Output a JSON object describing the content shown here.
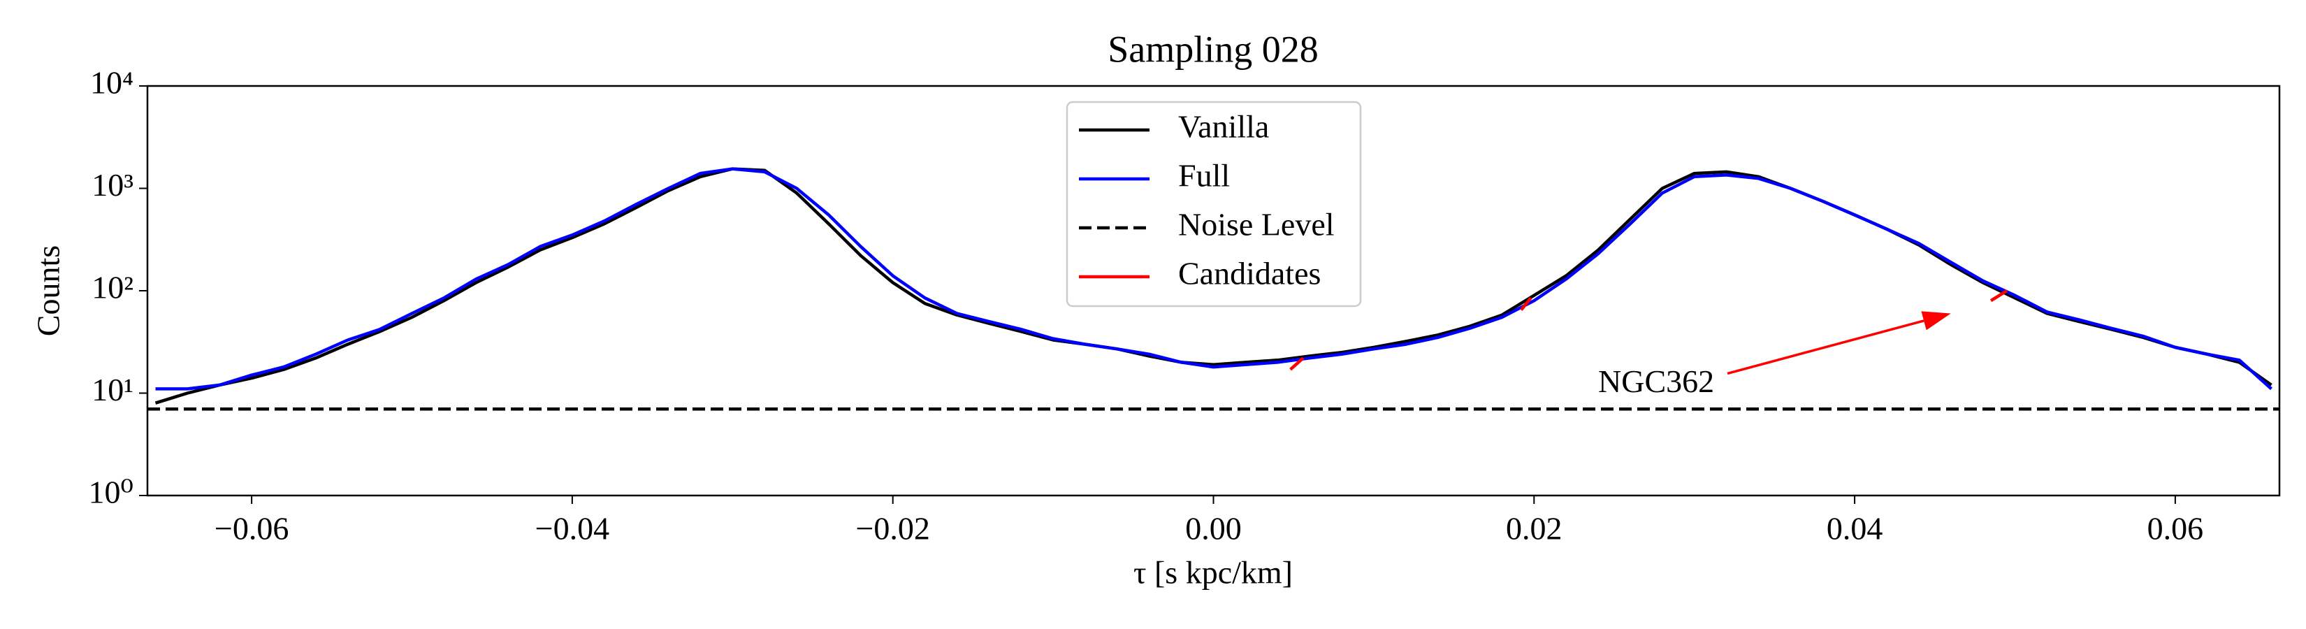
{
  "chart_data": {
    "type": "line",
    "title": "Sampling 028",
    "xlabel": "τ [s kpc/km]",
    "ylabel": "Counts",
    "log_y": true,
    "xlim": [
      -0.0665,
      0.0665
    ],
    "ylim": [
      1,
      10000
    ],
    "xticks": [
      {
        "value": -0.06,
        "label": "−0.06"
      },
      {
        "value": -0.04,
        "label": "−0.04"
      },
      {
        "value": -0.02,
        "label": "−0.02"
      },
      {
        "value": 0,
        "label": "0.00"
      },
      {
        "value": 0.02,
        "label": "0.02"
      },
      {
        "value": 0.04,
        "label": "0.04"
      },
      {
        "value": 0.06,
        "label": "0.06"
      }
    ],
    "yticks": [
      {
        "value": 1,
        "label": "10⁰"
      },
      {
        "value": 10,
        "label": "10¹"
      },
      {
        "value": 100,
        "label": "10²"
      },
      {
        "value": 1000,
        "label": "10³"
      },
      {
        "value": 10000,
        "label": "10⁴"
      }
    ],
    "legend": "upper center",
    "series": [
      {
        "name": "Vanilla",
        "color": "#000000",
        "linestyle": "solid",
        "x": [
          -0.066,
          -0.064,
          -0.062,
          -0.06,
          -0.058,
          -0.056,
          -0.054,
          -0.052,
          -0.05,
          -0.048,
          -0.046,
          -0.044,
          -0.042,
          -0.04,
          -0.038,
          -0.036,
          -0.034,
          -0.032,
          -0.03,
          -0.028,
          -0.026,
          -0.024,
          -0.022,
          -0.02,
          -0.018,
          -0.016,
          -0.014,
          -0.012,
          -0.01,
          -0.008,
          -0.006,
          -0.004,
          -0.002,
          0,
          0.002,
          0.004,
          0.006,
          0.008,
          0.01,
          0.012,
          0.014,
          0.016,
          0.018,
          0.02,
          0.022,
          0.024,
          0.026,
          0.028,
          0.03,
          0.032,
          0.034,
          0.036,
          0.038,
          0.04,
          0.042,
          0.044,
          0.046,
          0.048,
          0.05,
          0.052,
          0.054,
          0.056,
          0.058,
          0.06,
          0.062,
          0.064,
          0.066
        ],
        "values": [
          8,
          10,
          12,
          14,
          17,
          22,
          30,
          40,
          55,
          80,
          120,
          170,
          250,
          330,
          450,
          650,
          950,
          1300,
          1550,
          1500,
          900,
          450,
          220,
          120,
          75,
          58,
          48,
          40,
          33,
          30,
          27,
          23,
          20,
          19,
          20,
          21,
          23,
          25,
          28,
          32,
          37,
          45,
          58,
          90,
          140,
          250,
          500,
          1000,
          1400,
          1450,
          1300,
          1000,
          750,
          550,
          400,
          280,
          180,
          120,
          85,
          60,
          50,
          42,
          35,
          28,
          24,
          20,
          12
        ]
      },
      {
        "name": "Full",
        "color": "#0000ff",
        "linestyle": "solid",
        "x": [
          -0.066,
          -0.064,
          -0.062,
          -0.06,
          -0.058,
          -0.056,
          -0.054,
          -0.052,
          -0.05,
          -0.048,
          -0.046,
          -0.044,
          -0.042,
          -0.04,
          -0.038,
          -0.036,
          -0.034,
          -0.032,
          -0.03,
          -0.028,
          -0.026,
          -0.024,
          -0.022,
          -0.02,
          -0.018,
          -0.016,
          -0.014,
          -0.012,
          -0.01,
          -0.008,
          -0.006,
          -0.004,
          -0.002,
          0,
          0.002,
          0.004,
          0.006,
          0.008,
          0.01,
          0.012,
          0.014,
          0.016,
          0.018,
          0.02,
          0.022,
          0.024,
          0.026,
          0.028,
          0.03,
          0.032,
          0.034,
          0.036,
          0.038,
          0.04,
          0.042,
          0.044,
          0.046,
          0.048,
          0.05,
          0.052,
          0.054,
          0.056,
          0.058,
          0.06,
          0.062,
          0.064,
          0.066
        ],
        "values": [
          11,
          11,
          12,
          15,
          18,
          24,
          33,
          42,
          60,
          85,
          130,
          180,
          270,
          350,
          480,
          700,
          1000,
          1400,
          1550,
          1450,
          1000,
          550,
          270,
          140,
          85,
          60,
          50,
          42,
          34,
          30,
          27,
          24,
          20,
          18,
          19,
          20,
          22,
          24,
          27,
          30,
          35,
          43,
          55,
          80,
          130,
          230,
          450,
          900,
          1300,
          1350,
          1250,
          1000,
          750,
          550,
          400,
          290,
          190,
          125,
          90,
          62,
          52,
          43,
          36,
          28,
          24,
          21,
          11
        ]
      },
      {
        "name": "Noise Level",
        "color": "#000000",
        "linestyle": "dashed",
        "x": [
          -0.0665,
          0.0665
        ],
        "values": [
          7,
          7
        ]
      },
      {
        "name": "Candidates",
        "color": "#ff0000",
        "linestyle": "solid",
        "x": [
          0.0048,
          0.0056,
          0.0057,
          0.0192,
          0.0198,
          0.0199,
          0.0485,
          0.0495
        ],
        "values": [
          17,
          22,
          null,
          65,
          85,
          null,
          80,
          100
        ]
      }
    ],
    "annotations": [
      {
        "text": "NGC362",
        "xy": [
          0.046,
          60
        ],
        "xytext": [
          0.024,
          11
        ],
        "color": "#ff0000"
      }
    ]
  }
}
